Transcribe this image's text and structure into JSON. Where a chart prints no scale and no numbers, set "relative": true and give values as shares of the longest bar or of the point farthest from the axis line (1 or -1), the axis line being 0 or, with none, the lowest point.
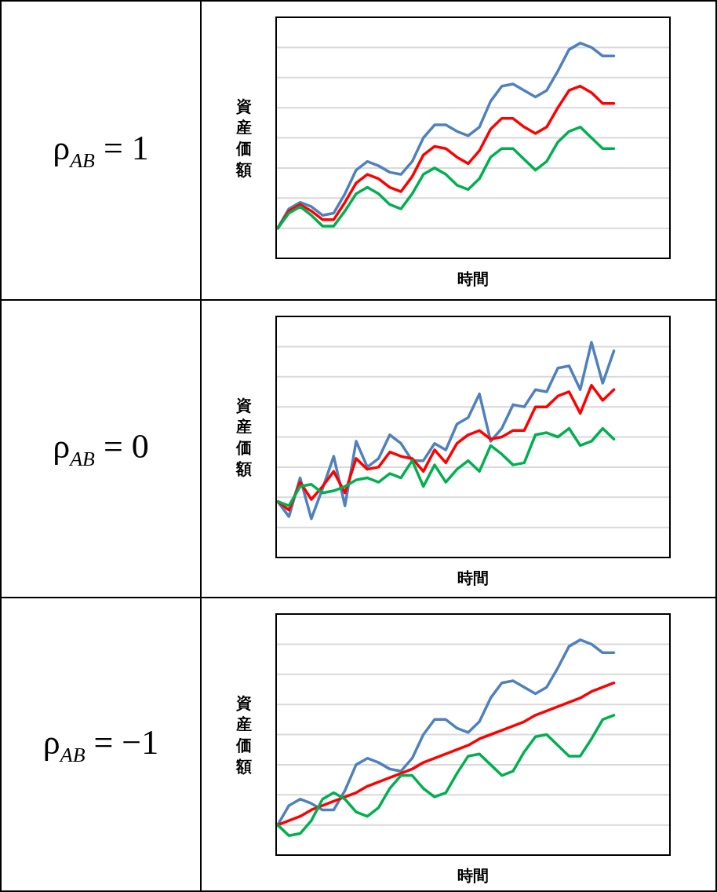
{
  "chart_data": [
    {
      "type": "line",
      "title": "ρ$_{AB}$ = 1",
      "xlabel": "時間",
      "ylabel": "資産価額",
      "relative": true,
      "grid": true,
      "categories": [
        null,
        null,
        null,
        null,
        null,
        null,
        null,
        null,
        null,
        null,
        null,
        null,
        null,
        null,
        null,
        null,
        null,
        null,
        null,
        null,
        null,
        null,
        null,
        null,
        null,
        null,
        null,
        null,
        null,
        null,
        null,
        null,
        null,
        null,
        null,
        null
      ],
      "series": [
        {
          "color": "#4f81bd",
          "values": [
            0.14,
            0.23,
            0.26,
            0.24,
            0.2,
            0.21,
            0.3,
            0.41,
            0.45,
            0.43,
            0.4,
            0.39,
            0.45,
            0.56,
            0.62,
            0.62,
            0.59,
            0.57,
            0.61,
            0.73,
            0.8,
            0.81,
            0.78,
            0.75,
            0.78,
            0.87,
            0.97,
            1,
            0.98,
            0.94,
            0.94,
            null,
            null,
            null,
            null,
            null
          ]
        },
        {
          "color": "#ff0000",
          "values": [
            0.14,
            0.22,
            0.25,
            0.22,
            0.18,
            0.18,
            0.26,
            0.35,
            0.39,
            0.37,
            0.33,
            0.31,
            0.38,
            0.48,
            0.52,
            0.51,
            0.47,
            0.44,
            0.5,
            0.6,
            0.65,
            0.65,
            0.61,
            0.58,
            0.61,
            0.7,
            0.78,
            0.8,
            0.77,
            0.72,
            0.72,
            null,
            null,
            null,
            null,
            null
          ]
        },
        {
          "color": "#00b050",
          "values": [
            0.14,
            0.21,
            0.24,
            0.2,
            0.15,
            0.15,
            0.22,
            0.3,
            0.33,
            0.3,
            0.25,
            0.23,
            0.3,
            0.39,
            0.42,
            0.39,
            0.34,
            0.32,
            0.37,
            0.47,
            0.51,
            0.51,
            0.46,
            0.41,
            0.45,
            0.54,
            0.59,
            0.61,
            0.56,
            0.51,
            0.51,
            null,
            null,
            null,
            null,
            null
          ]
        }
      ]
    },
    {
      "type": "line",
      "title": "ρ$_{AB}$ = 0",
      "xlabel": "時間",
      "ylabel": "資産価額",
      "relative": true,
      "grid": true,
      "categories": [
        null,
        null,
        null,
        null,
        null,
        null,
        null,
        null,
        null,
        null,
        null,
        null,
        null,
        null,
        null,
        null,
        null,
        null,
        null,
        null,
        null,
        null,
        null,
        null,
        null,
        null,
        null,
        null,
        null,
        null,
        null,
        null,
        null,
        null,
        null,
        null
      ],
      "series": [
        {
          "color": "#4f81bd",
          "values": [
            0.26,
            0.19,
            0.37,
            0.18,
            0.32,
            0.47,
            0.24,
            0.54,
            0.42,
            0.46,
            0.57,
            0.53,
            0.45,
            0.45,
            0.53,
            0.5,
            0.62,
            0.65,
            0.76,
            0.54,
            0.6,
            0.71,
            0.7,
            0.78,
            0.77,
            0.88,
            0.89,
            0.78,
            1,
            0.81,
            0.96,
            null,
            null,
            null,
            null,
            null
          ]
        },
        {
          "color": "#ff0000",
          "values": [
            0.26,
            0.22,
            0.35,
            0.27,
            0.33,
            0.4,
            0.3,
            0.46,
            0.41,
            0.42,
            0.49,
            0.47,
            0.46,
            0.4,
            0.5,
            0.44,
            0.53,
            0.57,
            0.59,
            0.55,
            0.56,
            0.59,
            0.59,
            0.7,
            0.7,
            0.75,
            0.77,
            0.67,
            0.8,
            0.73,
            0.78,
            null,
            null,
            null,
            null,
            null
          ]
        },
        {
          "color": "#00b050",
          "values": [
            0.26,
            0.24,
            0.33,
            0.34,
            0.3,
            0.31,
            0.33,
            0.36,
            0.37,
            0.35,
            0.39,
            0.37,
            0.45,
            0.33,
            0.43,
            0.35,
            0.41,
            0.45,
            0.4,
            0.52,
            0.48,
            0.43,
            0.44,
            0.57,
            0.58,
            0.56,
            0.6,
            0.52,
            0.54,
            0.6,
            0.55,
            null,
            null,
            null,
            null,
            null
          ]
        }
      ]
    },
    {
      "type": "line",
      "title": "ρ$_{AB}$ = −1",
      "xlabel": "時間",
      "ylabel": "資産価額",
      "relative": true,
      "grid": true,
      "categories": [
        null,
        null,
        null,
        null,
        null,
        null,
        null,
        null,
        null,
        null,
        null,
        null,
        null,
        null,
        null,
        null,
        null,
        null,
        null,
        null,
        null,
        null,
        null,
        null,
        null,
        null,
        null,
        null,
        null,
        null,
        null,
        null,
        null,
        null,
        null,
        null
      ],
      "series": [
        {
          "color": "#4f81bd",
          "values": [
            0.14,
            0.23,
            0.26,
            0.24,
            0.21,
            0.21,
            0.3,
            0.42,
            0.45,
            0.43,
            0.4,
            0.39,
            0.45,
            0.56,
            0.63,
            0.63,
            0.59,
            0.57,
            0.62,
            0.73,
            0.8,
            0.81,
            0.78,
            0.75,
            0.78,
            0.87,
            0.97,
            1,
            0.98,
            0.94,
            0.94,
            null,
            null,
            null,
            null,
            null
          ]
        },
        {
          "color": "#ff0000",
          "values": [
            0.14,
            0.16,
            0.18,
            0.21,
            0.23,
            0.25,
            0.27,
            0.29,
            0.32,
            0.34,
            0.36,
            0.38,
            0.4,
            0.43,
            0.45,
            0.47,
            0.49,
            0.51,
            0.54,
            0.56,
            0.58,
            0.6,
            0.62,
            0.65,
            0.67,
            0.69,
            0.71,
            0.73,
            0.76,
            0.78,
            0.8,
            null,
            null,
            null,
            null,
            null
          ]
        },
        {
          "color": "#00b050",
          "values": [
            0.14,
            0.09,
            0.1,
            0.16,
            0.26,
            0.29,
            0.26,
            0.2,
            0.18,
            0.22,
            0.31,
            0.37,
            0.37,
            0.31,
            0.27,
            0.29,
            0.38,
            0.46,
            0.47,
            0.42,
            0.37,
            0.39,
            0.48,
            0.55,
            0.56,
            0.51,
            0.46,
            0.46,
            0.54,
            0.63,
            0.65,
            null,
            null,
            null,
            null,
            null
          ]
        }
      ]
    }
  ]
}
